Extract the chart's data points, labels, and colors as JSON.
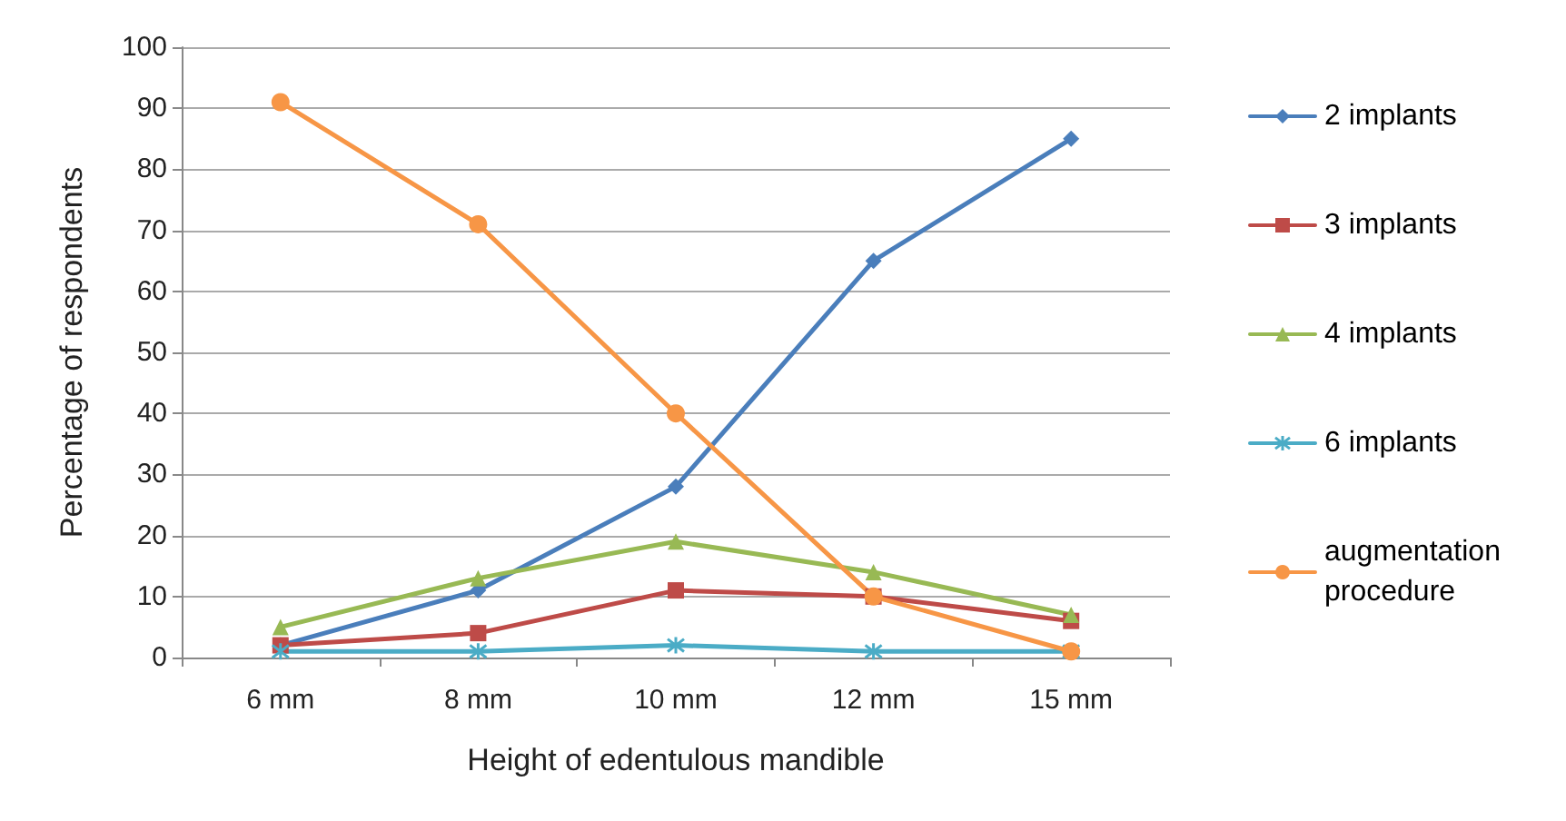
{
  "chart_data": {
    "type": "line",
    "xlabel": "Height of edentulous mandible",
    "ylabel": "Percentage of respondents",
    "categories": [
      "6 mm",
      "8 mm",
      "10 mm",
      "12 mm",
      "15 mm"
    ],
    "series": [
      {
        "name": "2 implants",
        "color": "#4a7ebb",
        "marker": "diamond",
        "values": [
          2,
          11,
          28,
          65,
          85
        ]
      },
      {
        "name": "3 implants",
        "color": "#be4b48",
        "marker": "square",
        "values": [
          2,
          4,
          11,
          10,
          6
        ]
      },
      {
        "name": "4 implants",
        "color": "#98b954",
        "marker": "triangle",
        "values": [
          5,
          13,
          19,
          14,
          7
        ]
      },
      {
        "name": "6 implants",
        "color": "#4bacc6",
        "marker": "cross",
        "values": [
          1,
          1,
          2,
          1,
          1
        ]
      },
      {
        "name": "augmentation procedure",
        "color": "#f79646",
        "marker": "circle",
        "values": [
          91,
          71,
          40,
          10,
          1
        ]
      }
    ],
    "ylim": [
      0,
      100
    ],
    "yticks": [
      0,
      10,
      20,
      30,
      40,
      50,
      60,
      70,
      80,
      90,
      100
    ],
    "grid": "y",
    "legend": "right",
    "line_style": "solid"
  }
}
